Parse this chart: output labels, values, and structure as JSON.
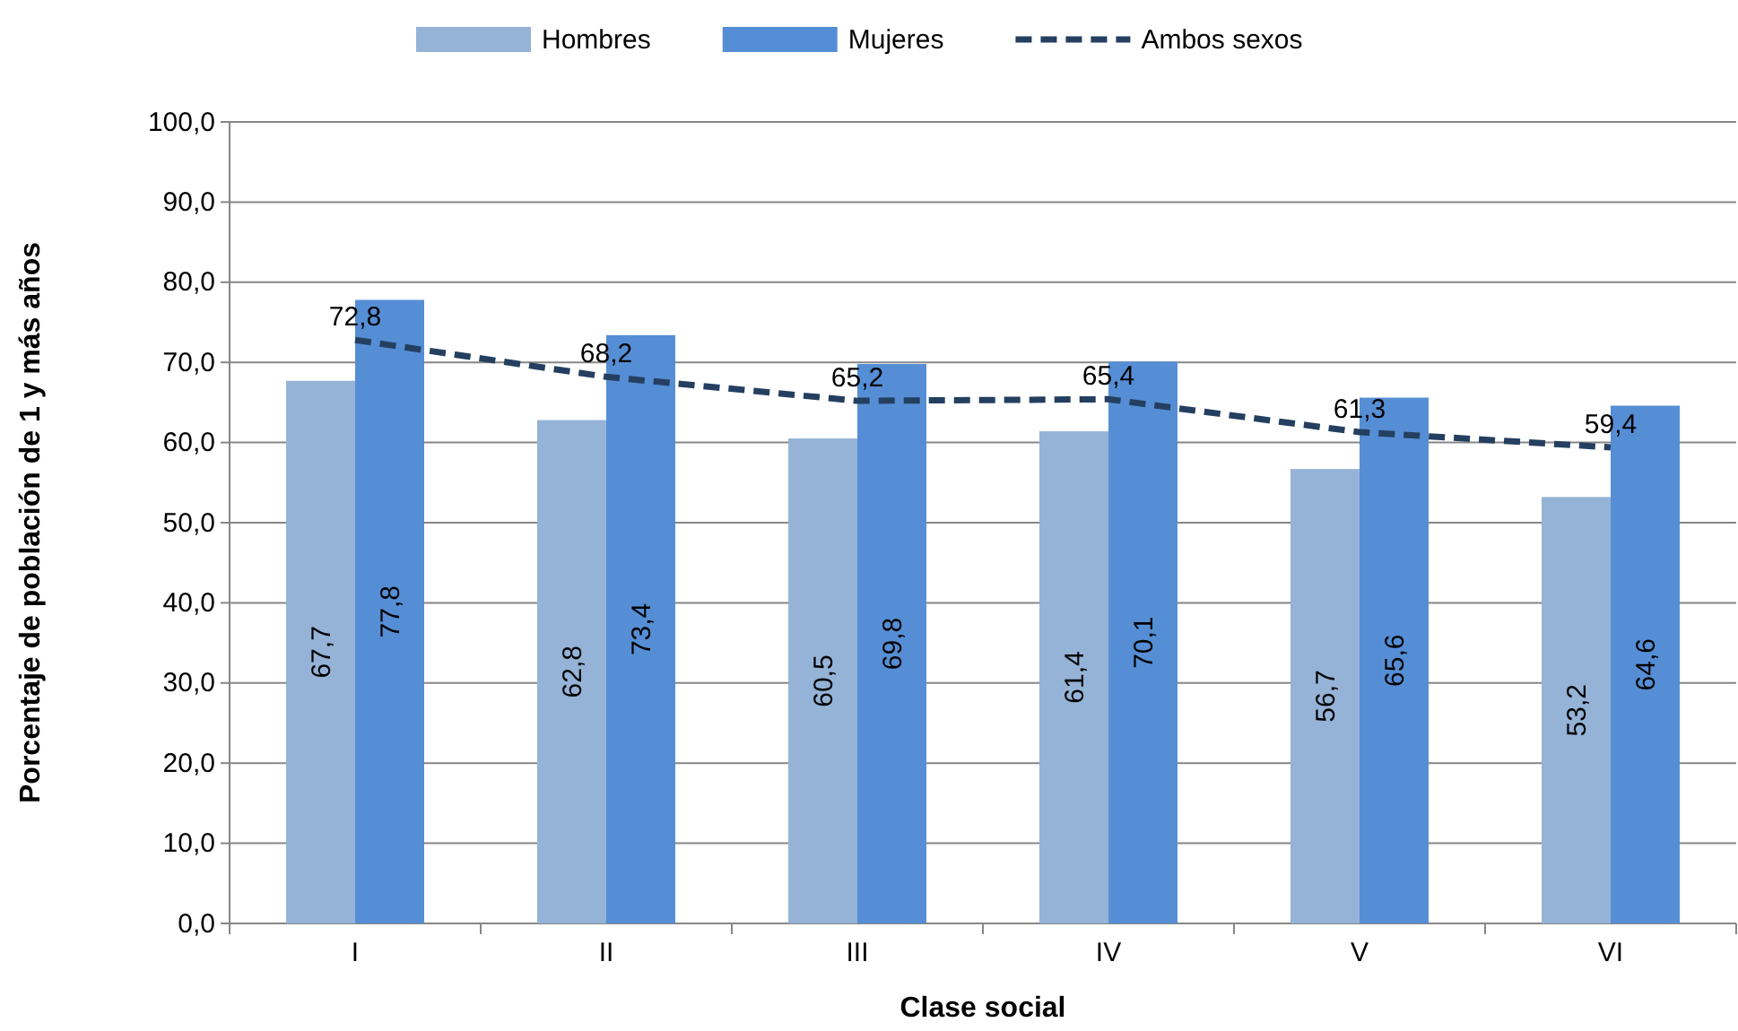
{
  "chart_data": {
    "type": "bar",
    "xlabel": "Clase social",
    "ylabel": "Porcentaje de población de 1 y más años",
    "categories": [
      "I",
      "II",
      "III",
      "IV",
      "V",
      "VI"
    ],
    "series": [
      {
        "name": "Hombres",
        "color": "#95b3d7",
        "values": [
          67.7,
          62.8,
          60.5,
          61.4,
          56.7,
          53.2
        ],
        "value_labels": [
          "67,7",
          "62,8",
          "60,5",
          "61,4",
          "56,7",
          "53,2"
        ]
      },
      {
        "name": "Mujeres",
        "color": "#558ed5",
        "values": [
          77.8,
          73.4,
          69.8,
          70.1,
          65.6,
          64.6
        ],
        "value_labels": [
          "77,8",
          "73,4",
          "69,8",
          "70,1",
          "65,6",
          "64,6"
        ]
      },
      {
        "name": "Ambos sexos",
        "type": "line",
        "color": "#243f60",
        "line_style": "dashed",
        "marker": "none",
        "values": [
          72.8,
          68.2,
          65.2,
          65.4,
          61.3,
          59.4
        ],
        "value_labels": [
          "72,8",
          "68,2",
          "65,2",
          "65,4",
          "61,3",
          "59,4"
        ]
      }
    ],
    "ylim": [
      0,
      100
    ],
    "yticks": [
      {
        "value": 0,
        "label": "0,0"
      },
      {
        "value": 10,
        "label": "10,0"
      },
      {
        "value": 20,
        "label": "20,0"
      },
      {
        "value": 30,
        "label": "30,0"
      },
      {
        "value": 40,
        "label": "40,0"
      },
      {
        "value": 50,
        "label": "50,0"
      },
      {
        "value": 60,
        "label": "60,0"
      },
      {
        "value": 70,
        "label": "70,0"
      },
      {
        "value": 80,
        "label": "80,0"
      },
      {
        "value": 90,
        "label": "90,0"
      },
      {
        "value": 100,
        "label": "100,0"
      }
    ],
    "grid": "y",
    "legend": "top"
  }
}
